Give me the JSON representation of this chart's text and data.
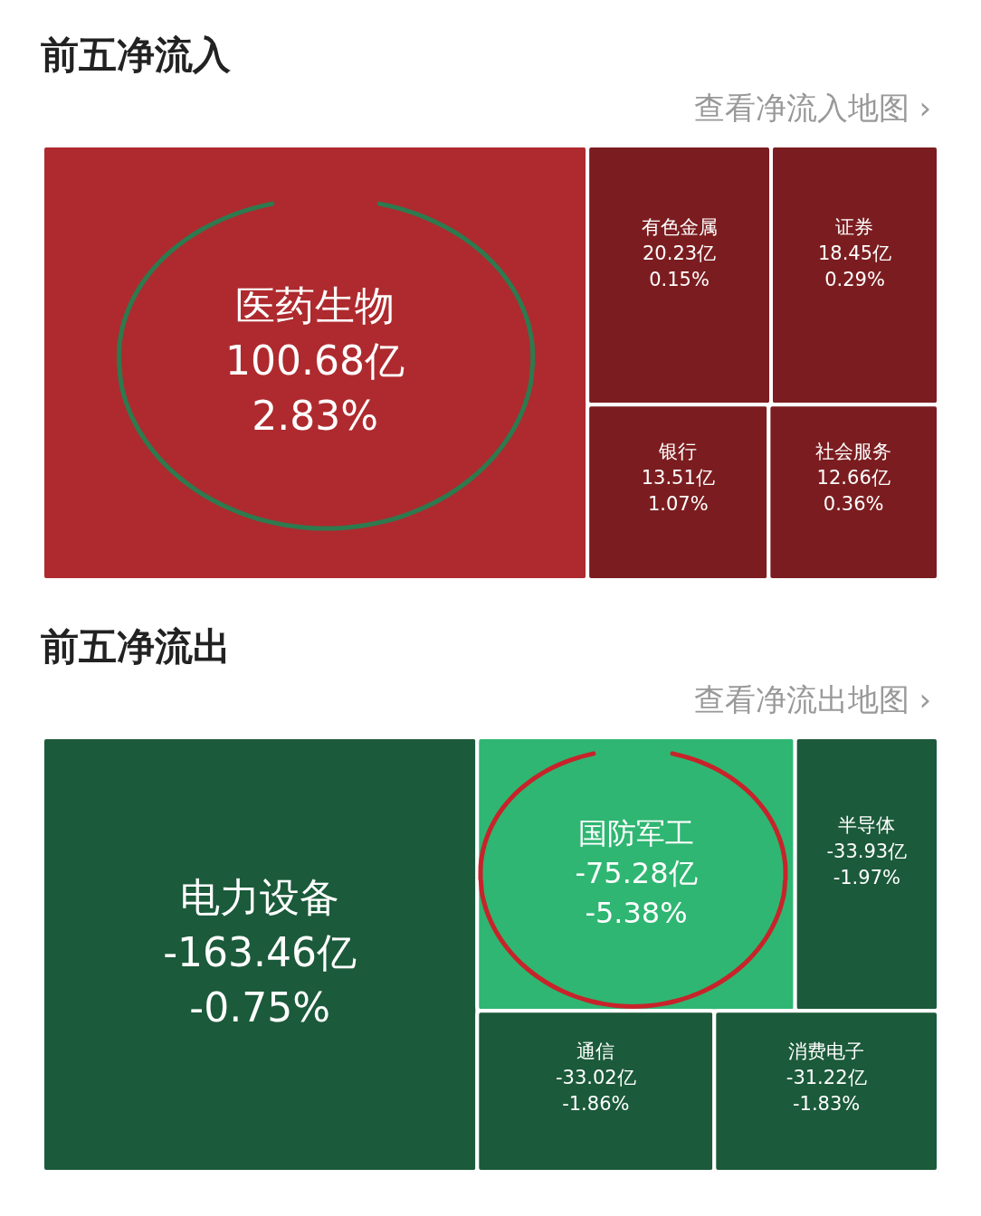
{
  "chart_data": [
    {
      "type": "other",
      "title": "前五净流入",
      "subtitle": "查看净流入地图 ›",
      "categories": [
        "医药生物",
        "有色金属",
        "证券",
        "银行",
        "社会服务"
      ],
      "values": [
        100.68,
        20.23,
        18.45,
        13.51,
        12.66
      ],
      "value_labels": [
        "100.68亿",
        "20.23亿",
        "18.45亿",
        "13.51亿",
        "12.66亿"
      ],
      "annotations": [
        {
          "text": "2.83%",
          "x": "医药生物"
        },
        {
          "text": "0.15%",
          "x": "有色金属"
        },
        {
          "text": "0.29%",
          "x": "证券"
        },
        {
          "text": "1.07%",
          "x": "银行"
        },
        {
          "text": "0.36%",
          "x": "社会服务"
        }
      ],
      "colors": [
        "#ae2a2e",
        "#7b1d20",
        "#7b1d20",
        "#7b1d20",
        "#7b1d20"
      ]
    },
    {
      "type": "other",
      "title": "前五净流出",
      "subtitle": "查看净流出地图 ›",
      "categories": [
        "电力设备",
        "国防军工",
        "半导体",
        "通信",
        "消费电子"
      ],
      "values": [
        -163.46,
        -75.28,
        -33.93,
        -33.02,
        -31.22
      ],
      "value_labels": [
        "-163.46亿",
        "-75.28亿",
        "-33.93亿",
        "-33.02亿",
        "-31.22亿"
      ],
      "annotations": [
        {
          "text": "-0.75%",
          "x": "电力设备"
        },
        {
          "text": "-5.38%",
          "x": "国防军工"
        },
        {
          "text": "-1.97%",
          "x": "半导体"
        },
        {
          "text": "-1.86%",
          "x": "通信"
        },
        {
          "text": "-1.83%",
          "x": "消费电子"
        }
      ],
      "colors": [
        "#1b5a3a",
        "#2fb672",
        "#1b5a3a",
        "#1b5a3a",
        "#1b5a3a"
      ]
    }
  ]
}
